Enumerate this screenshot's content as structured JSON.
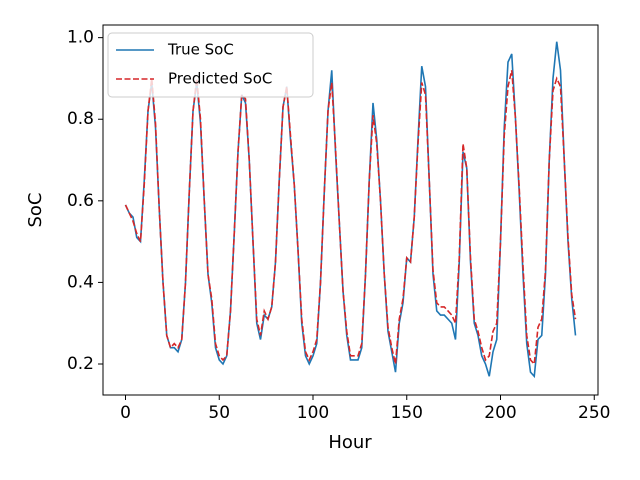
{
  "chart_data": {
    "type": "line",
    "xlabel": "Hour",
    "ylabel": "SoC",
    "x": [
      0,
      2,
      4,
      6,
      8,
      10,
      12,
      14,
      16,
      18,
      20,
      22,
      24,
      26,
      28,
      30,
      32,
      34,
      36,
      38,
      40,
      42,
      44,
      46,
      48,
      50,
      52,
      54,
      56,
      58,
      60,
      62,
      64,
      66,
      68,
      70,
      72,
      74,
      76,
      78,
      80,
      82,
      84,
      86,
      88,
      90,
      92,
      94,
      96,
      98,
      100,
      102,
      104,
      106,
      108,
      110,
      112,
      114,
      116,
      118,
      120,
      122,
      124,
      126,
      128,
      130,
      132,
      134,
      136,
      138,
      140,
      142,
      144,
      146,
      148,
      150,
      152,
      154,
      156,
      158,
      160,
      162,
      164,
      166,
      168,
      170,
      172,
      174,
      176,
      178,
      180,
      182,
      184,
      186,
      188,
      190,
      192,
      194,
      196,
      198,
      200,
      202,
      204,
      206,
      208,
      210,
      212,
      214,
      216,
      218,
      220,
      222,
      224,
      226,
      228,
      230,
      232,
      234,
      236,
      238,
      240
    ],
    "series": [
      {
        "name": "True SoC",
        "color": "#1f77b4",
        "linestyle": "solid",
        "values": [
          0.59,
          0.57,
          0.56,
          0.51,
          0.5,
          0.65,
          0.82,
          0.89,
          0.78,
          0.58,
          0.4,
          0.27,
          0.24,
          0.24,
          0.23,
          0.26,
          0.4,
          0.62,
          0.82,
          0.89,
          0.79,
          0.6,
          0.42,
          0.35,
          0.24,
          0.21,
          0.2,
          0.22,
          0.33,
          0.52,
          0.72,
          0.86,
          0.84,
          0.7,
          0.5,
          0.3,
          0.26,
          0.32,
          0.31,
          0.34,
          0.45,
          0.65,
          0.83,
          0.88,
          0.75,
          0.64,
          0.48,
          0.3,
          0.22,
          0.2,
          0.22,
          0.25,
          0.4,
          0.62,
          0.82,
          0.92,
          0.72,
          0.55,
          0.38,
          0.27,
          0.21,
          0.21,
          0.21,
          0.24,
          0.42,
          0.65,
          0.84,
          0.75,
          0.6,
          0.42,
          0.28,
          0.23,
          0.18,
          0.3,
          0.35,
          0.46,
          0.45,
          0.56,
          0.75,
          0.93,
          0.88,
          0.65,
          0.42,
          0.33,
          0.32,
          0.32,
          0.31,
          0.3,
          0.26,
          0.45,
          0.72,
          0.68,
          0.45,
          0.3,
          0.27,
          0.22,
          0.2,
          0.17,
          0.23,
          0.26,
          0.5,
          0.78,
          0.94,
          0.96,
          0.8,
          0.62,
          0.42,
          0.25,
          0.18,
          0.17,
          0.26,
          0.27,
          0.42,
          0.7,
          0.9,
          0.99,
          0.92,
          0.7,
          0.5,
          0.36,
          0.27
        ]
      },
      {
        "name": "Predicted SoC",
        "color": "#d62728",
        "linestyle": "dashed",
        "values": [
          0.59,
          0.57,
          0.55,
          0.52,
          0.5,
          0.64,
          0.82,
          0.9,
          0.79,
          0.58,
          0.4,
          0.27,
          0.24,
          0.25,
          0.24,
          0.26,
          0.4,
          0.62,
          0.82,
          0.9,
          0.8,
          0.6,
          0.42,
          0.36,
          0.25,
          0.22,
          0.21,
          0.22,
          0.33,
          0.52,
          0.72,
          0.86,
          0.85,
          0.7,
          0.5,
          0.31,
          0.27,
          0.33,
          0.31,
          0.34,
          0.45,
          0.65,
          0.83,
          0.88,
          0.76,
          0.64,
          0.48,
          0.31,
          0.23,
          0.21,
          0.23,
          0.26,
          0.4,
          0.62,
          0.82,
          0.89,
          0.73,
          0.55,
          0.38,
          0.28,
          0.22,
          0.22,
          0.22,
          0.25,
          0.42,
          0.65,
          0.81,
          0.74,
          0.6,
          0.42,
          0.29,
          0.24,
          0.2,
          0.31,
          0.36,
          0.46,
          0.45,
          0.56,
          0.74,
          0.89,
          0.86,
          0.65,
          0.43,
          0.35,
          0.34,
          0.34,
          0.33,
          0.32,
          0.3,
          0.46,
          0.74,
          0.68,
          0.46,
          0.31,
          0.28,
          0.24,
          0.21,
          0.22,
          0.28,
          0.3,
          0.5,
          0.76,
          0.88,
          0.92,
          0.8,
          0.63,
          0.44,
          0.27,
          0.21,
          0.2,
          0.29,
          0.31,
          0.43,
          0.7,
          0.87,
          0.9,
          0.88,
          0.7,
          0.51,
          0.37,
          0.31
        ]
      }
    ],
    "xlim": [
      -12,
      252
    ],
    "xticks": [
      0,
      50,
      100,
      150,
      200,
      250
    ],
    "ylim": [
      0.124,
      1.031
    ],
    "yticks": [
      0.2,
      0.4,
      0.6,
      0.8,
      {
        "value": 1,
        "label": "1.0"
      }
    ],
    "grid": false,
    "legend": "upper left"
  }
}
